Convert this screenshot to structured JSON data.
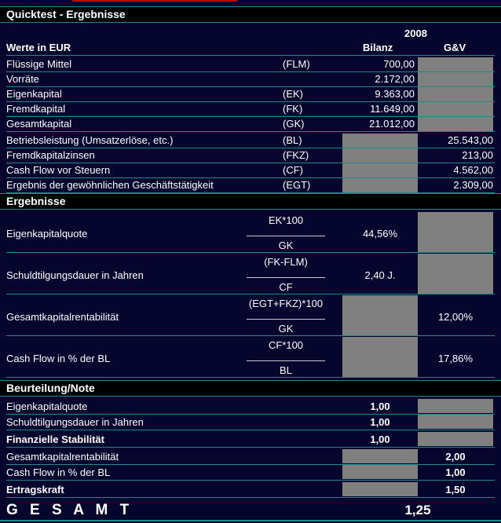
{
  "title": "Quicktest - Ergebnisse",
  "year": "2008",
  "currency_label": "Werte in EUR",
  "col_bilanz": "Bilanz",
  "col_guv": "G&V",
  "inputs": [
    {
      "label": "Flüssige Mittel",
      "abbr": "(FLM)",
      "bilanz": "700,00",
      "guv": ""
    },
    {
      "label": "Vorräte",
      "abbr": "",
      "bilanz": "2.172,00",
      "guv": ""
    },
    {
      "label": "Eigenkapital",
      "abbr": "(EK)",
      "bilanz": "9.363,00",
      "guv": ""
    },
    {
      "label": "Fremdkapital",
      "abbr": "(FK)",
      "bilanz": "11.649,00",
      "guv": ""
    },
    {
      "label": "Gesamtkapital",
      "abbr": "(GK)",
      "bilanz": "21.012,00",
      "guv": ""
    },
    {
      "label": "Betriebsleistung (Umsatzerlöse, etc.)",
      "abbr": "(BL)",
      "bilanz": "",
      "guv": "25.543,00"
    },
    {
      "label": "Fremdkapitalzinsen",
      "abbr": "(FKZ)",
      "bilanz": "",
      "guv": "213,00"
    },
    {
      "label": "Cash Flow vor Steuern",
      "abbr": "(CF)",
      "bilanz": "",
      "guv": "4.562,00"
    },
    {
      "label": "Ergebnis der gewöhnlichen Geschäftstätigkeit",
      "abbr": "(EGT)",
      "bilanz": "",
      "guv": "2.309,00"
    }
  ],
  "results_title": "Ergebnisse",
  "results": [
    {
      "label": "Eigenkapitalquote",
      "numerator": "EK*100",
      "denominator": "GK",
      "bilanz": "44,56%",
      "guv": ""
    },
    {
      "label": "Schuldtilgungsdauer in Jahren",
      "numerator": "(FK-FLM)",
      "denominator": "CF",
      "bilanz": "2,40 J.",
      "guv": ""
    },
    {
      "label": "Gesamtkapitalrentabilität",
      "numerator": "(EGT+FKZ)*100",
      "denominator": "GK",
      "bilanz": "",
      "guv": "12,00%"
    },
    {
      "label": "Cash Flow in % der BL",
      "numerator": "CF*100",
      "denominator": "BL",
      "bilanz": "",
      "guv": "17,86%"
    }
  ],
  "rating_title": "Beurteilung/Note",
  "ratings": [
    {
      "label": "Eigenkapitalquote",
      "bilanz": "1,00",
      "guv": "",
      "bold": false
    },
    {
      "label": "Schuldtilgungsdauer in Jahren",
      "bilanz": "1,00",
      "guv": "",
      "bold": false
    },
    {
      "label": "Finanzielle Stabilität",
      "bilanz": "1,00",
      "guv": "",
      "bold": true
    },
    {
      "label": "Gesamtkapitalrentabilität",
      "bilanz": "",
      "guv": "2,00",
      "bold": false
    },
    {
      "label": "Cash Flow in % der BL",
      "bilanz": "",
      "guv": "1,00",
      "bold": false
    },
    {
      "label": "Ertragskraft",
      "bilanz": "",
      "guv": "1,50",
      "bold": true
    }
  ],
  "total_label": "G E S A M T",
  "total_value": "1,25",
  "colors": {
    "background": "#05052e",
    "header": "#000000",
    "accent_line": "#1f8a8a",
    "grey_cell": "#808080"
  }
}
